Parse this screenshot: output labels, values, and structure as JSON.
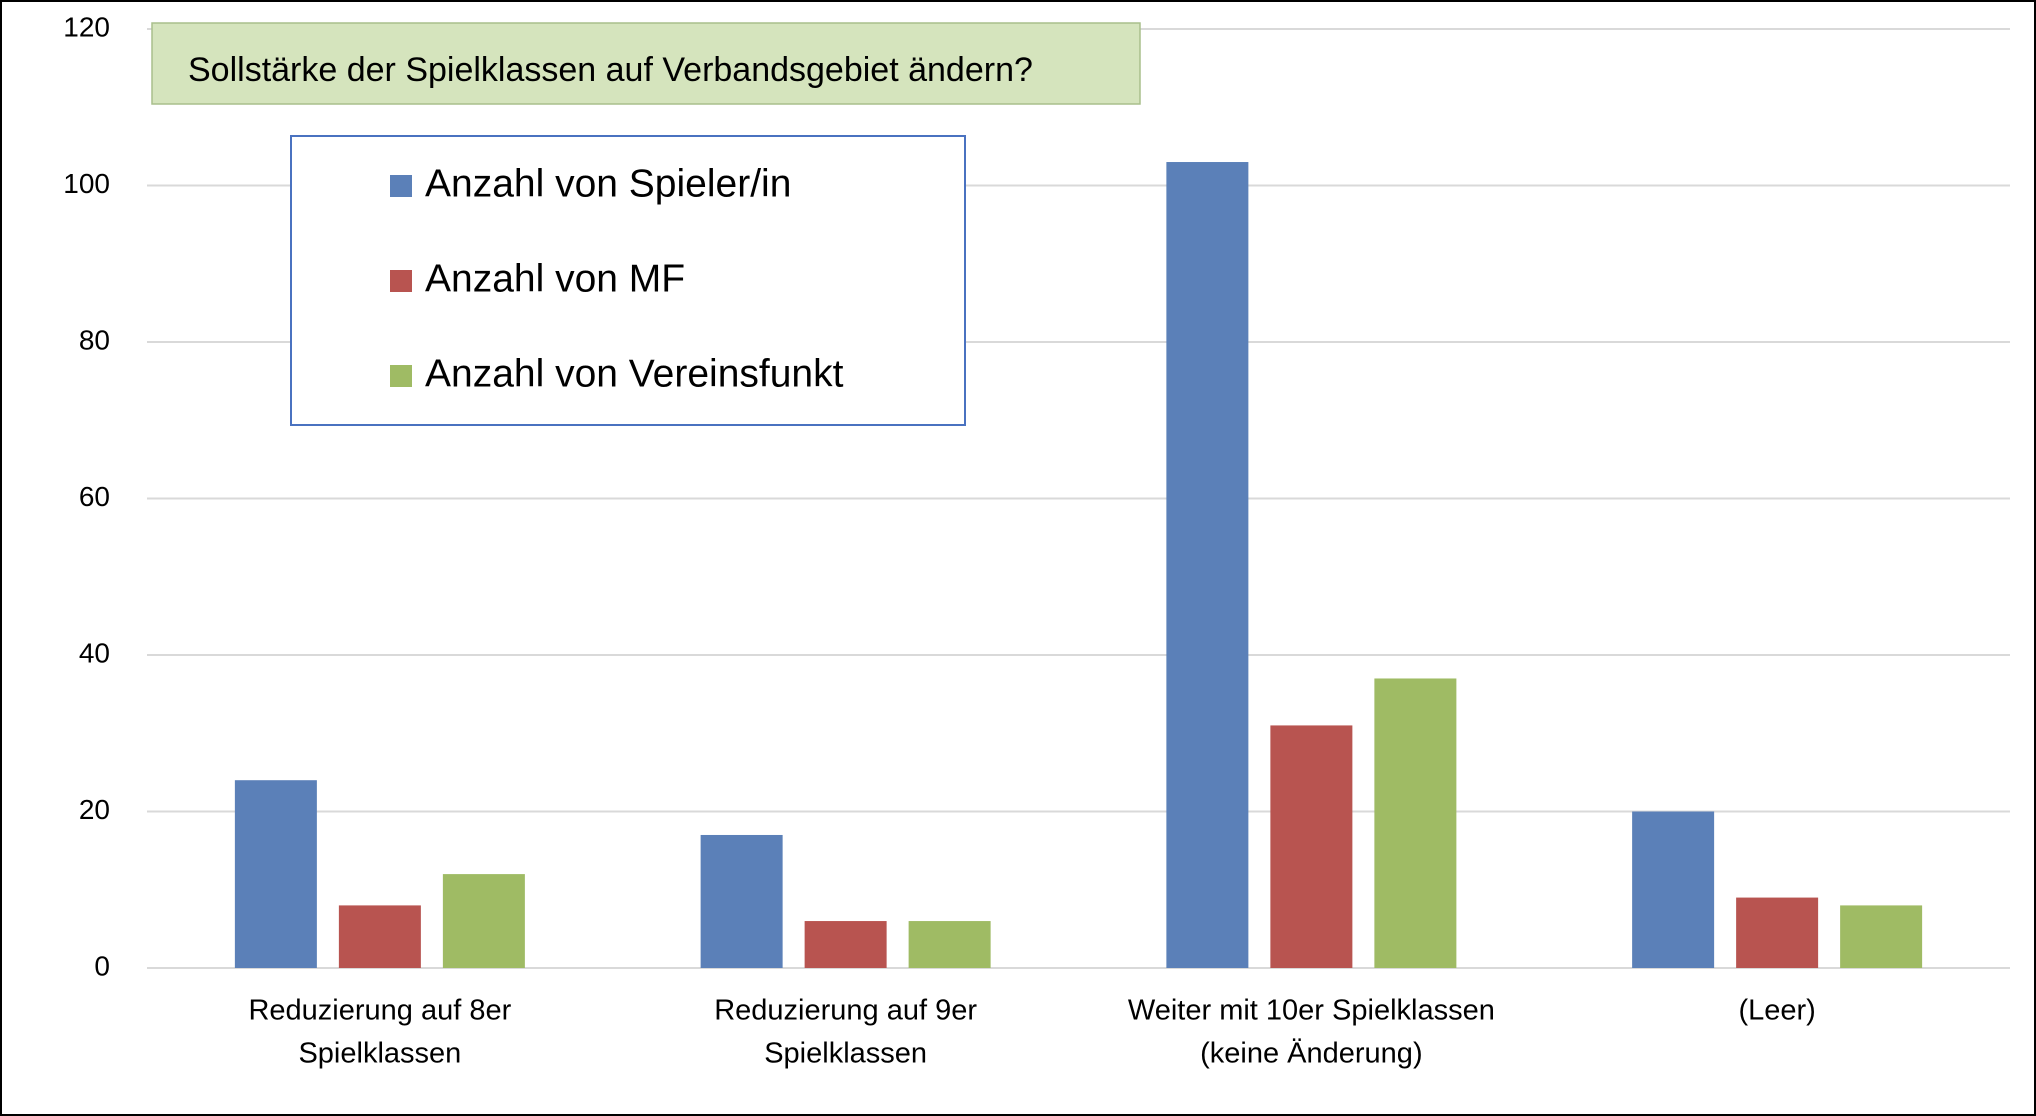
{
  "chart_data": {
    "type": "bar",
    "title": "Sollstärke der Spielklassen auf Verbandsgebiet ändern?",
    "categories": [
      [
        "Reduzierung auf 8er",
        "Spielklassen"
      ],
      [
        "Reduzierung auf 9er",
        "Spielklassen"
      ],
      [
        "Weiter mit 10er Spielklassen",
        "(keine Änderung)"
      ],
      [
        "(Leer)"
      ]
    ],
    "series": [
      {
        "name": "Anzahl von Spieler/in",
        "color": "#5b80b8",
        "values": [
          24,
          17,
          103,
          20
        ]
      },
      {
        "name": "Anzahl von MF",
        "color": "#b85450",
        "values": [
          8,
          6,
          31,
          9
        ]
      },
      {
        "name": "Anzahl von Vereinsfunkt",
        "color": "#9fbb64",
        "values": [
          12,
          6,
          37,
          8
        ]
      }
    ],
    "ylim": [
      0,
      120
    ],
    "yticks": [
      0,
      20,
      40,
      60,
      80,
      100,
      120
    ],
    "grid": true,
    "legend": "top-left"
  }
}
